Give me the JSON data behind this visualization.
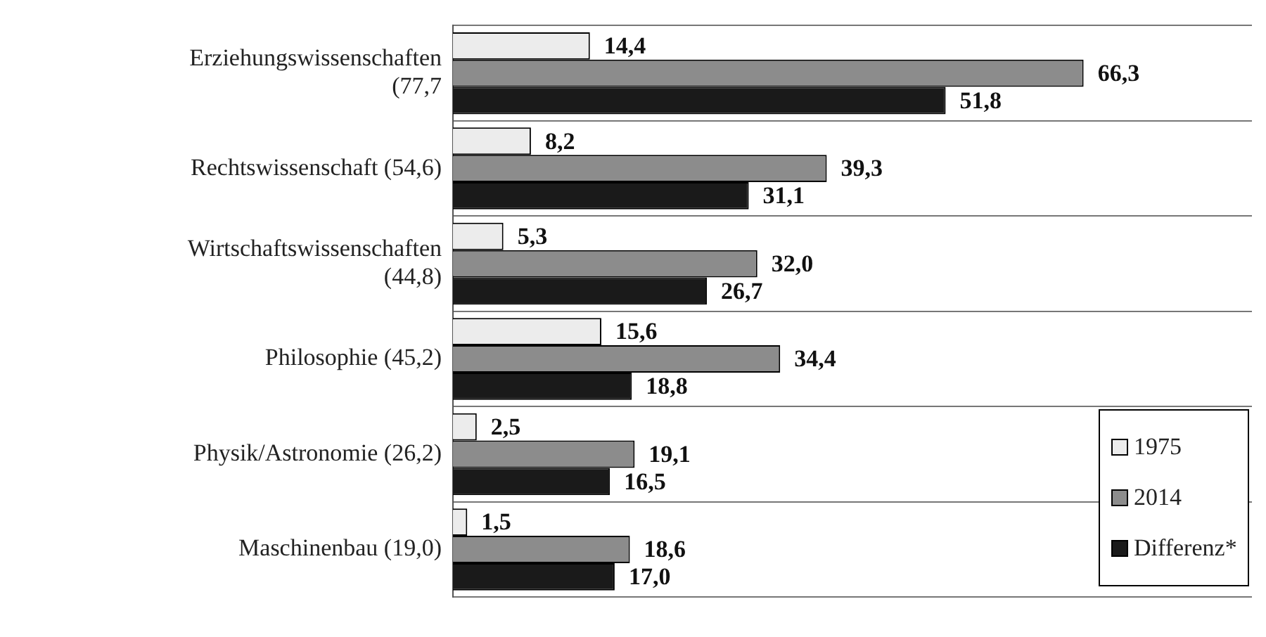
{
  "chart_data": {
    "type": "bar",
    "orientation": "horizontal",
    "categories": [
      "Erziehungswissenschaften (77,7",
      "Rechtswissenschaft (54,6)",
      "Wirtschaftswissenschaften (44,8)",
      "Philosophie (45,2)",
      "Physik/Astronomie (26,2)",
      "Maschinenbau (19,0)"
    ],
    "series": [
      {
        "name": "1975",
        "color": "#ececec",
        "values": [
          14.4,
          8.2,
          5.3,
          15.6,
          2.5,
          1.5
        ],
        "value_labels": [
          "14,4",
          "8,2",
          "5,3",
          "15,6",
          "2,5",
          "1,5"
        ]
      },
      {
        "name": "2014",
        "color": "#8c8c8c",
        "values": [
          66.3,
          39.3,
          32.0,
          34.4,
          19.1,
          18.6
        ],
        "value_labels": [
          "66,3",
          "39,3",
          "32,0",
          "34,4",
          "19,1",
          "18,6"
        ]
      },
      {
        "name": "Differenz*",
        "color": "#1a1a1a",
        "values": [
          51.8,
          31.1,
          26.7,
          18.8,
          16.5,
          17.0
        ],
        "value_labels": [
          "51,8",
          "31,1",
          "26,7",
          "18,8",
          "16,5",
          "17,0"
        ]
      }
    ],
    "xlim": [
      0,
      84
    ],
    "grid": "y",
    "legend": "bottom right",
    "tick_labels": "y"
  }
}
